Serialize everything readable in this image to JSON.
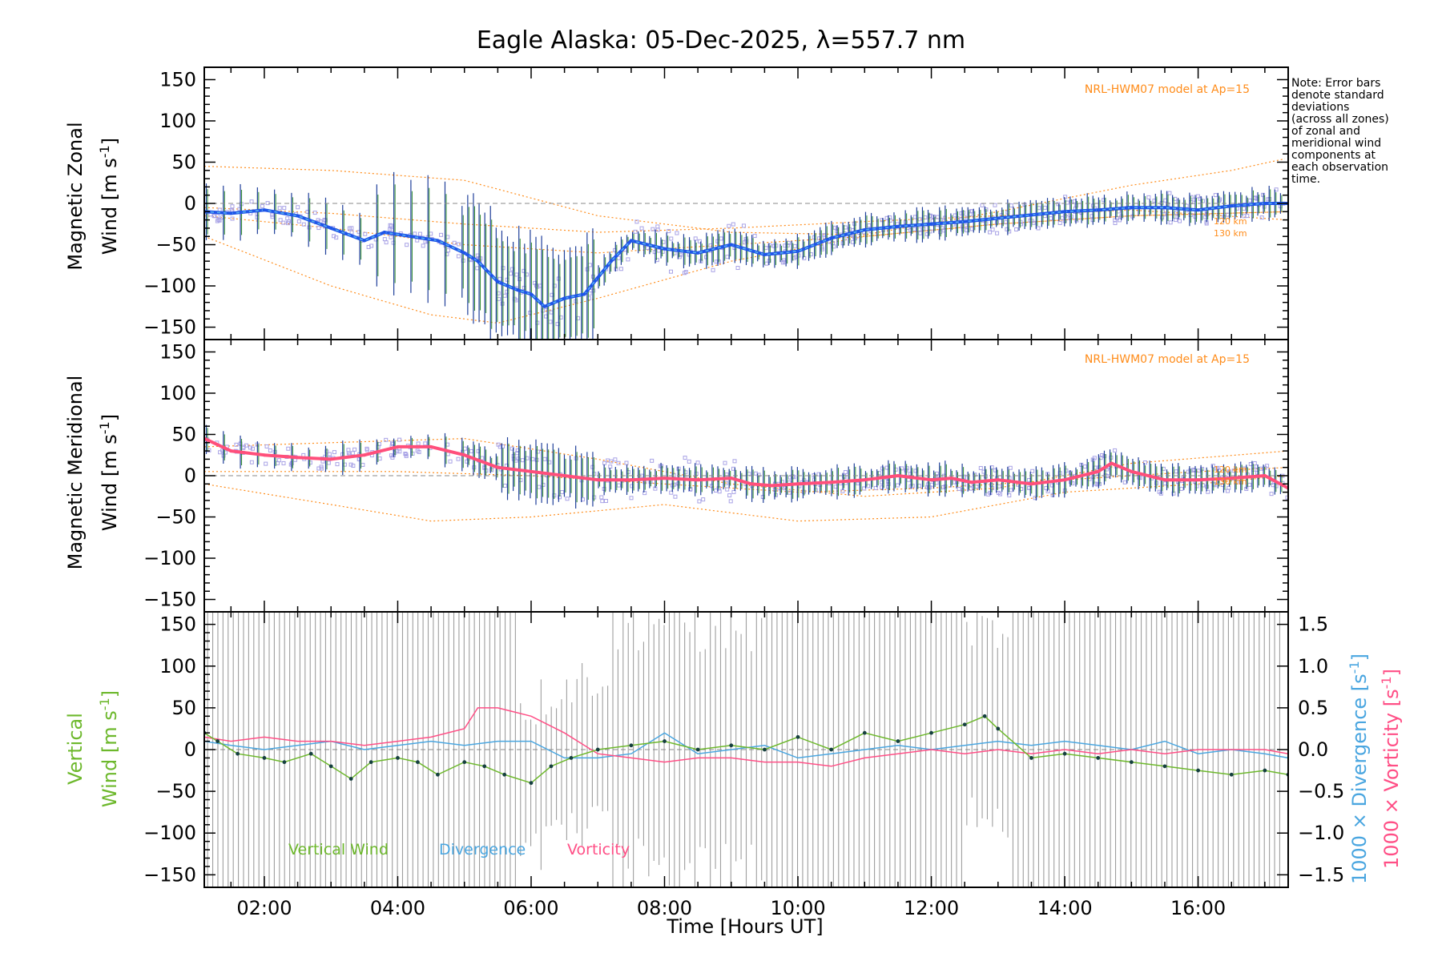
{
  "title": "Eagle Alaska: 05-Dec-2025, λ=557.7 nm",
  "note": [
    "Note: Error bars",
    "denote standard",
    "deviations",
    "(across all zones)",
    "of zonal and",
    "meridional wind",
    "components at",
    "each observation",
    "time."
  ],
  "model_label": "NRL-HWM07 model at Ap=15",
  "altitude_labels": [
    "120 km",
    "130 km"
  ],
  "colors": {
    "zonal_line": "#1f55e8",
    "zonal_line_light": "#5ab4f0",
    "meridional_line": "#ff4f7b",
    "model": "#ff8c1a",
    "scatter": "#a9a3e6",
    "vertical": "#6db82c",
    "divergence": "#4aa6e0",
    "vorticity": "#ff4f86",
    "error_bar": "#9e9e9e",
    "axis": "#000000"
  },
  "chart_data": [
    {
      "type": "line",
      "panel": "zonal",
      "ylabel_line1": "Magnetic Zonal",
      "ylabel_line2": "Wind [m s",
      "ylabel_sup": "-1",
      "ylabel_close": "]",
      "ylim": [
        -165,
        165
      ],
      "yticks": [
        150,
        100,
        50,
        0,
        -50,
        -100,
        -150
      ],
      "xlim": [
        1.1,
        17.35
      ],
      "series": [
        {
          "name": "Zonal wind",
          "x": [
            1.1,
            1.5,
            2.0,
            2.5,
            3.0,
            3.5,
            3.8,
            4.2,
            4.6,
            5.0,
            5.2,
            5.5,
            5.8,
            6.0,
            6.2,
            6.5,
            6.8,
            7.0,
            7.2,
            7.5,
            8.0,
            8.5,
            9.0,
            9.5,
            10.0,
            10.5,
            11.0,
            11.5,
            12.0,
            12.5,
            13.0,
            13.5,
            14.0,
            14.5,
            15.0,
            15.5,
            16.0,
            16.5,
            17.0,
            17.35
          ],
          "y": [
            -10,
            -12,
            -8,
            -15,
            -30,
            -45,
            -35,
            -40,
            -45,
            -60,
            -70,
            -95,
            -105,
            -110,
            -125,
            -115,
            -110,
            -90,
            -70,
            -45,
            -55,
            -60,
            -50,
            -62,
            -58,
            -42,
            -32,
            -28,
            -25,
            -22,
            -18,
            -14,
            -10,
            -8,
            -5,
            -5,
            -8,
            -3,
            0,
            0
          ]
        }
      ],
      "model_curves": [
        {
          "name": "upper",
          "x": [
            1.1,
            3.0,
            5.0,
            7.0,
            9.0,
            11.0,
            13.0,
            15.0,
            16.5,
            17.35
          ],
          "y": [
            45,
            40,
            28,
            -15,
            -35,
            -38,
            -10,
            22,
            40,
            55
          ]
        },
        {
          "name": "lower",
          "x": [
            1.1,
            3.0,
            4.5,
            5.5,
            7.0,
            9.0,
            11.0,
            13.0,
            15.0,
            17.35
          ],
          "y": [
            -40,
            -100,
            -135,
            -145,
            -115,
            -70,
            -40,
            -25,
            -15,
            -10
          ]
        },
        {
          "name": "mid1",
          "x": [
            1.1,
            3.0,
            5.0,
            7.0,
            9.0,
            11.0,
            13.0,
            15.0,
            17.35
          ],
          "y": [
            -15,
            -30,
            -50,
            -60,
            -50,
            -40,
            -25,
            -15,
            -10
          ]
        },
        {
          "name": "mid2",
          "x": [
            1.1,
            3.0,
            5.0,
            7.0,
            9.0,
            11.0,
            13.0,
            15.0,
            17.35
          ],
          "y": [
            -5,
            -12,
            -25,
            -35,
            -30,
            -22,
            -15,
            -8,
            -20
          ]
        }
      ]
    },
    {
      "type": "line",
      "panel": "meridional",
      "ylabel_line1": "Magnetic Meridional",
      "ylabel_line2": "Wind [m s",
      "ylabel_sup": "-1",
      "ylabel_close": "]",
      "ylim": [
        -165,
        165
      ],
      "yticks": [
        150,
        100,
        50,
        0,
        -50,
        -100,
        -150
      ],
      "xlim": [
        1.1,
        17.35
      ],
      "series": [
        {
          "name": "Meridional wind",
          "x": [
            1.1,
            1.5,
            2.0,
            2.5,
            3.0,
            3.5,
            4.0,
            4.5,
            5.0,
            5.5,
            6.0,
            6.5,
            7.0,
            7.5,
            8.0,
            8.5,
            9.0,
            9.3,
            9.6,
            10.0,
            10.5,
            11.0,
            11.5,
            12.0,
            12.3,
            12.6,
            13.0,
            13.5,
            14.0,
            14.5,
            14.7,
            15.0,
            15.5,
            16.0,
            16.5,
            17.0,
            17.35
          ],
          "y": [
            45,
            30,
            25,
            22,
            20,
            25,
            35,
            35,
            25,
            10,
            5,
            0,
            -5,
            -5,
            -3,
            -5,
            -3,
            -10,
            -12,
            -10,
            -8,
            -5,
            0,
            -5,
            -3,
            -8,
            -5,
            -10,
            -5,
            5,
            15,
            5,
            -5,
            -5,
            -3,
            0,
            -15
          ]
        }
      ],
      "model_curves": [
        {
          "name": "upper",
          "x": [
            1.1,
            3.0,
            5.0,
            7.0,
            9.0,
            11.0,
            13.0,
            15.0,
            17.35
          ],
          "y": [
            35,
            40,
            45,
            20,
            -10,
            -25,
            -15,
            15,
            30
          ]
        },
        {
          "name": "lower",
          "x": [
            1.1,
            3.0,
            4.5,
            6.0,
            8.0,
            10.0,
            12.0,
            14.0,
            16.0,
            17.35
          ],
          "y": [
            -10,
            -35,
            -55,
            -50,
            -35,
            -55,
            -50,
            -20,
            -10,
            0
          ]
        },
        {
          "name": "mid",
          "x": [
            1.1,
            4.0,
            6.0,
            8.0,
            10.0,
            12.0,
            14.0,
            16.0,
            17.35
          ],
          "y": [
            5,
            5,
            0,
            -10,
            -20,
            -15,
            -5,
            5,
            10
          ]
        }
      ]
    },
    {
      "type": "line",
      "panel": "vertical",
      "ylabel_line1": "Vertical",
      "ylabel_line2": "Wind [m s",
      "ylabel_sup": "-1",
      "ylabel_close": "]",
      "right_label_div": "1000 × Divergence [s",
      "right_label_vor": "1000 × Vorticity [s",
      "right_label_sup": "-1",
      "right_label_close": "]",
      "ylim": [
        -165,
        165
      ],
      "yticks": [
        150,
        100,
        50,
        0,
        -50,
        -100,
        -150
      ],
      "y2lim": [
        -1.65,
        1.65
      ],
      "y2ticks": [
        1.5,
        1.0,
        0.5,
        0.0,
        -0.5,
        -1.0,
        -1.5
      ],
      "y2ticklabels": [
        "1.5",
        "1.0",
        "0.5",
        "0.0",
        "−0.5",
        "−1.0",
        "−1.5"
      ],
      "xlim": [
        1.1,
        17.35
      ],
      "xticks": [
        2,
        4,
        6,
        8,
        10,
        12,
        14,
        16
      ],
      "xticklabels": [
        "02:00",
        "04:00",
        "06:00",
        "08:00",
        "10:00",
        "12:00",
        "14:00",
        "16:00"
      ],
      "xlabel": "Time [Hours UT]",
      "legend": [
        "Vertical Wind",
        "Divergence",
        "Vorticity"
      ],
      "series": [
        {
          "name": "Vertical Wind",
          "axis": "left",
          "x": [
            1.1,
            1.3,
            1.6,
            2.0,
            2.3,
            2.7,
            3.0,
            3.3,
            3.6,
            4.0,
            4.3,
            4.6,
            5.0,
            5.3,
            5.6,
            6.0,
            6.3,
            6.6,
            7.0,
            7.5,
            8.0,
            8.5,
            9.0,
            9.5,
            10.0,
            10.5,
            11.0,
            11.5,
            12.0,
            12.5,
            12.8,
            13.0,
            13.5,
            14.0,
            14.5,
            15.0,
            15.5,
            16.0,
            16.5,
            17.0,
            17.35
          ],
          "y": [
            20,
            10,
            -5,
            -10,
            -15,
            -5,
            -20,
            -35,
            -15,
            -10,
            -15,
            -30,
            -15,
            -20,
            -30,
            -40,
            -20,
            -10,
            0,
            5,
            10,
            0,
            5,
            0,
            15,
            0,
            20,
            10,
            20,
            30,
            40,
            25,
            -10,
            -5,
            -10,
            -15,
            -20,
            -25,
            -30,
            -25,
            -30
          ]
        },
        {
          "name": "Divergence",
          "axis": "right",
          "x": [
            1.1,
            1.5,
            2.0,
            2.5,
            3.0,
            3.5,
            4.0,
            4.5,
            5.0,
            5.5,
            6.0,
            6.5,
            7.0,
            7.5,
            8.0,
            8.5,
            9.0,
            9.5,
            10.0,
            10.5,
            11.0,
            11.5,
            12.0,
            12.5,
            13.0,
            13.5,
            14.0,
            14.5,
            15.0,
            15.5,
            16.0,
            16.5,
            17.0,
            17.35
          ],
          "y": [
            0.1,
            0.05,
            0.0,
            0.05,
            0.1,
            0.0,
            0.05,
            0.1,
            0.05,
            0.1,
            0.1,
            -0.1,
            -0.1,
            -0.05,
            0.2,
            -0.05,
            0.0,
            0.05,
            -0.1,
            -0.05,
            0.0,
            0.05,
            0.0,
            0.05,
            0.1,
            0.05,
            0.1,
            0.05,
            0.0,
            0.1,
            -0.05,
            0.0,
            -0.05,
            -0.1
          ]
        },
        {
          "name": "Vorticity",
          "axis": "right",
          "x": [
            1.1,
            1.5,
            2.0,
            2.5,
            3.0,
            3.5,
            4.0,
            4.5,
            5.0,
            5.2,
            5.5,
            6.0,
            6.5,
            7.0,
            7.5,
            8.0,
            8.5,
            9.0,
            9.5,
            10.0,
            10.5,
            11.0,
            11.5,
            12.0,
            12.5,
            13.0,
            13.5,
            14.0,
            14.5,
            15.0,
            15.5,
            16.0,
            16.5,
            17.0,
            17.35
          ],
          "y": [
            0.15,
            0.1,
            0.15,
            0.1,
            0.1,
            0.05,
            0.1,
            0.15,
            0.25,
            0.5,
            0.5,
            0.4,
            0.2,
            -0.05,
            -0.1,
            -0.15,
            -0.1,
            -0.1,
            -0.15,
            -0.15,
            -0.2,
            -0.1,
            -0.05,
            0.0,
            -0.05,
            0.0,
            -0.05,
            0.0,
            -0.05,
            0.0,
            -0.05,
            0.0,
            0.0,
            0.0,
            -0.05
          ]
        }
      ]
    }
  ]
}
